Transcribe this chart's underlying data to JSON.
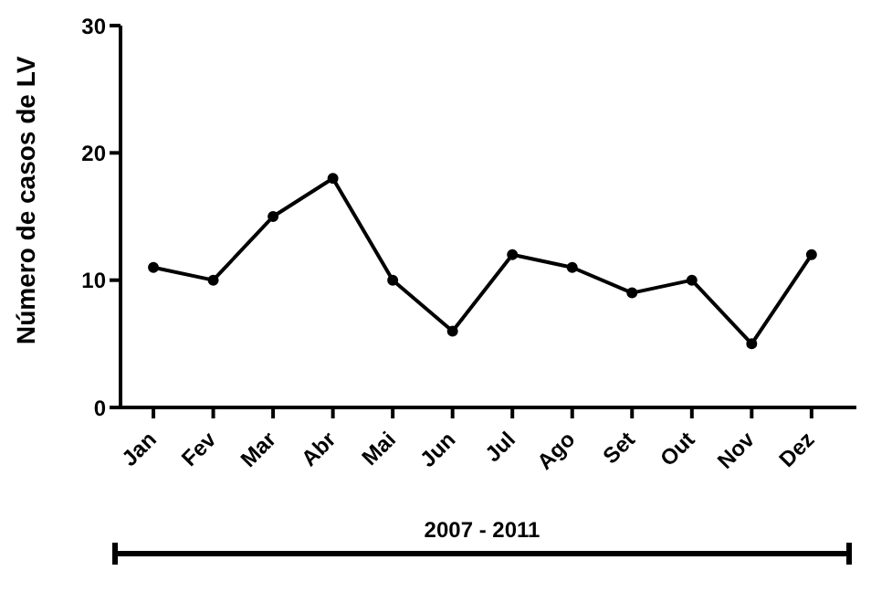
{
  "chart_data": {
    "type": "line",
    "ylabel": "Número de casos de LV",
    "xlabel": "2007 - 2011",
    "categories": [
      "Jan",
      "Fev",
      "Mar",
      "Abr",
      "Mai",
      "Jun",
      "Jul",
      "Ago",
      "Set",
      "Out",
      "Nov",
      "Dez"
    ],
    "series": [
      {
        "color": "#000000",
        "values": [
          11,
          10,
          15,
          18,
          10,
          6,
          12,
          11,
          9,
          10,
          5,
          12
        ]
      }
    ],
    "ylim": [
      0,
      30
    ],
    "yticks": [
      0,
      10,
      20,
      30
    ],
    "grid": false,
    "legend": false,
    "marker": "circle",
    "line_style": "solid"
  }
}
